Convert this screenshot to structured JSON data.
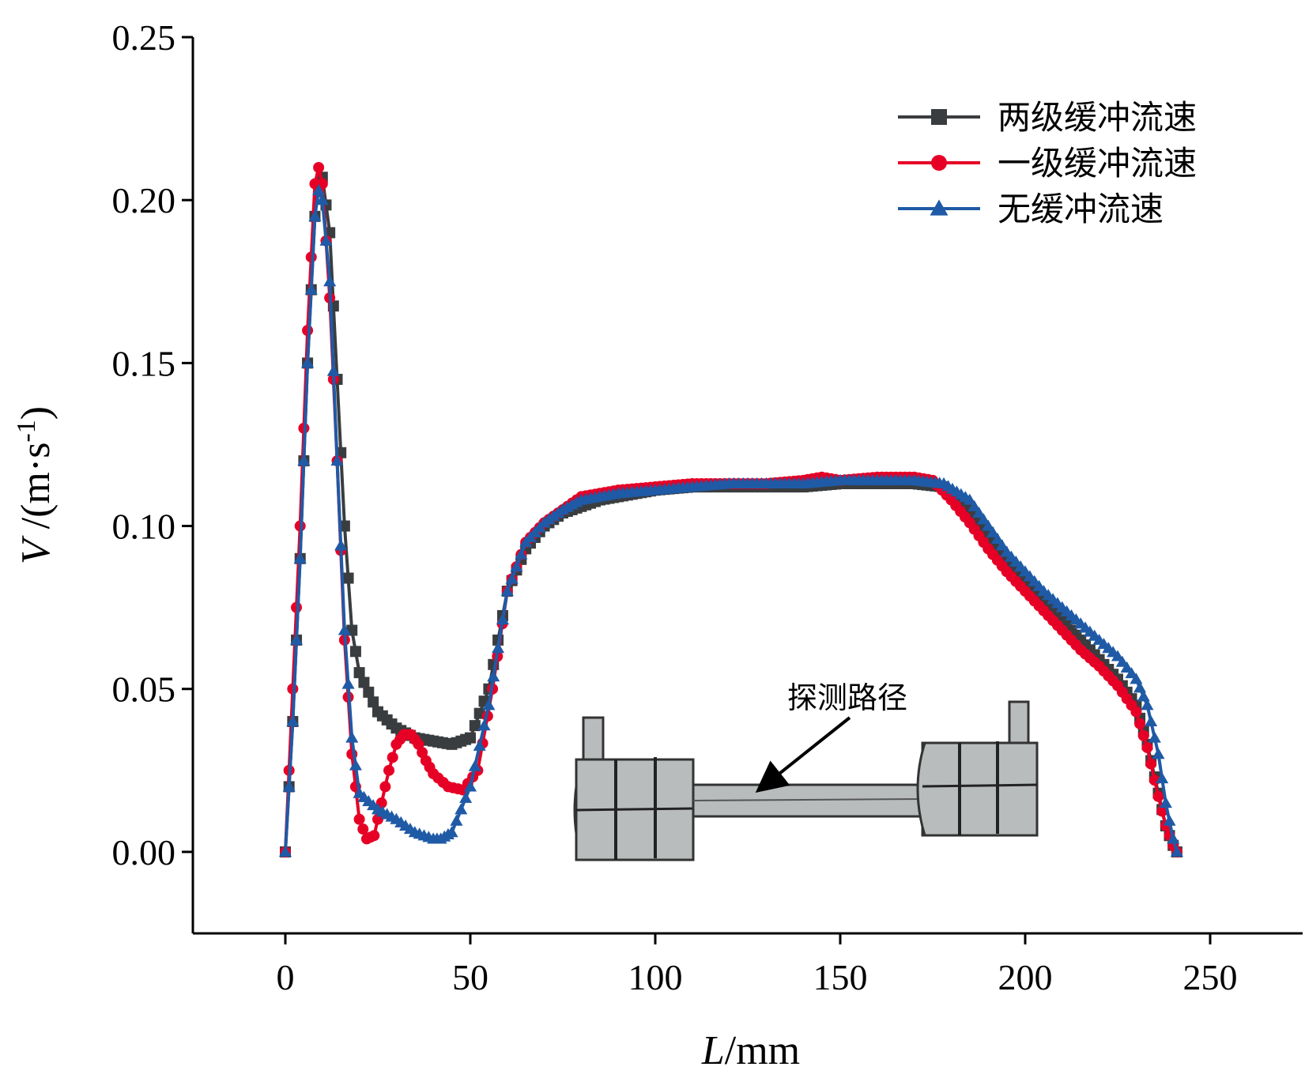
{
  "chart_data": {
    "type": "line",
    "xlabel_var": "L",
    "xlabel_unit": "/mm",
    "ylabel_var": "V",
    "ylabel_unit_prefix": " /(m·s",
    "ylabel_sup": "-1",
    "ylabel_unit_suffix": ")",
    "xlim": [
      -25,
      275
    ],
    "ylim": [
      -0.025,
      0.25
    ],
    "x_ticks": [
      0,
      50,
      100,
      150,
      200,
      250
    ],
    "y_ticks": [
      0.0,
      0.05,
      0.1,
      0.15,
      0.2,
      0.25
    ],
    "x_tick_labels": [
      "0",
      "50",
      "100",
      "150",
      "200",
      "250"
    ],
    "y_tick_labels": [
      "0.00",
      "0.05",
      "0.10",
      "0.15",
      "0.20",
      "0.25"
    ],
    "grid": false,
    "legend_position": "top-right",
    "annotation": "探测路径",
    "series": [
      {
        "name": "两级缓冲流速",
        "color": "#3a3d3f",
        "marker": "square",
        "x": [
          0,
          2,
          4,
          6,
          8,
          9,
          10,
          12,
          14,
          16,
          18,
          20,
          25,
          30,
          35,
          40,
          45,
          50,
          55,
          60,
          65,
          70,
          75,
          80,
          85,
          90,
          100,
          110,
          120,
          130,
          140,
          150,
          160,
          170,
          178,
          185,
          190,
          195,
          200,
          205,
          210,
          215,
          220,
          225,
          230,
          233,
          236,
          238,
          240,
          241
        ],
        "y": [
          0.0,
          0.04,
          0.09,
          0.15,
          0.195,
          0.205,
          0.207,
          0.19,
          0.145,
          0.1,
          0.068,
          0.055,
          0.043,
          0.038,
          0.035,
          0.034,
          0.033,
          0.035,
          0.05,
          0.08,
          0.093,
          0.1,
          0.104,
          0.106,
          0.108,
          0.109,
          0.111,
          0.112,
          0.112,
          0.112,
          0.112,
          0.113,
          0.113,
          0.113,
          0.112,
          0.105,
          0.098,
          0.09,
          0.083,
          0.077,
          0.071,
          0.065,
          0.059,
          0.053,
          0.045,
          0.033,
          0.018,
          0.008,
          0.002,
          0.0
        ]
      },
      {
        "name": "一级缓冲流速",
        "color": "#e60026",
        "marker": "circle",
        "x": [
          0,
          2,
          4,
          6,
          8,
          9,
          10,
          12,
          14,
          16,
          18,
          20,
          22,
          24,
          26,
          28,
          30,
          32,
          34,
          36,
          38,
          40,
          44,
          48,
          52,
          56,
          60,
          65,
          70,
          75,
          80,
          85,
          90,
          100,
          110,
          120,
          130,
          140,
          145,
          150,
          160,
          170,
          175,
          180,
          185,
          190,
          195,
          200,
          205,
          210,
          215,
          220,
          225,
          230,
          233,
          236,
          238,
          240,
          241
        ],
        "y": [
          0.0,
          0.05,
          0.1,
          0.16,
          0.205,
          0.21,
          0.205,
          0.17,
          0.12,
          0.065,
          0.03,
          0.01,
          0.004,
          0.005,
          0.015,
          0.025,
          0.033,
          0.036,
          0.036,
          0.033,
          0.028,
          0.024,
          0.02,
          0.019,
          0.025,
          0.05,
          0.08,
          0.095,
          0.101,
          0.105,
          0.109,
          0.11,
          0.111,
          0.112,
          0.113,
          0.113,
          0.113,
          0.114,
          0.115,
          0.114,
          0.115,
          0.115,
          0.114,
          0.108,
          0.101,
          0.093,
          0.086,
          0.08,
          0.074,
          0.068,
          0.062,
          0.057,
          0.051,
          0.043,
          0.032,
          0.017,
          0.008,
          0.002,
          0.0
        ]
      },
      {
        "name": "无缓冲流速",
        "color": "#1f5aa6",
        "marker": "triangle",
        "x": [
          0,
          2,
          4,
          6,
          8,
          9,
          10,
          12,
          14,
          16,
          18,
          20,
          25,
          30,
          35,
          40,
          42,
          45,
          50,
          55,
          60,
          65,
          70,
          75,
          80,
          85,
          90,
          100,
          110,
          120,
          130,
          140,
          150,
          160,
          170,
          178,
          185,
          190,
          195,
          200,
          205,
          210,
          215,
          220,
          225,
          230,
          233,
          236,
          238,
          240,
          241
        ],
        "y": [
          0.0,
          0.04,
          0.09,
          0.15,
          0.195,
          0.203,
          0.2,
          0.175,
          0.12,
          0.068,
          0.035,
          0.018,
          0.013,
          0.01,
          0.006,
          0.004,
          0.004,
          0.006,
          0.02,
          0.045,
          0.08,
          0.095,
          0.101,
          0.105,
          0.108,
          0.109,
          0.11,
          0.111,
          0.112,
          0.113,
          0.113,
          0.113,
          0.114,
          0.114,
          0.114,
          0.113,
          0.108,
          0.1,
          0.092,
          0.086,
          0.08,
          0.075,
          0.07,
          0.065,
          0.06,
          0.053,
          0.045,
          0.03,
          0.015,
          0.004,
          0.0
        ]
      }
    ]
  }
}
